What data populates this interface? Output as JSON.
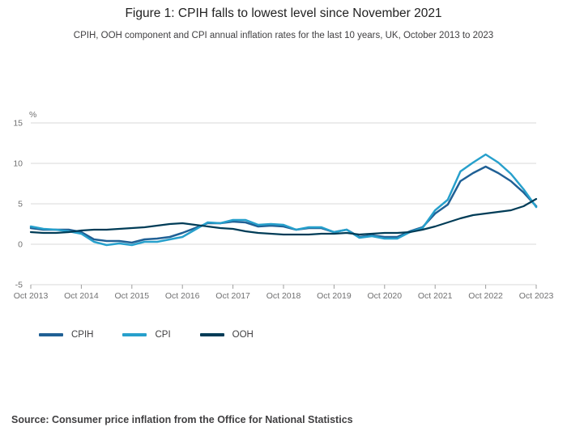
{
  "header": {
    "title": "Figure 1: CPIH falls to lowest level since November 2021",
    "subtitle": "CPIH, OOH component and CPI annual inflation rates for the last 10 years, UK, October 2013 to 2023"
  },
  "footer": {
    "source": "Source: Consumer price inflation from the Office for National Statistics"
  },
  "colors": {
    "gridline": "#d9d9d9",
    "tick": "#9d9d9d",
    "axis_text": "#707071",
    "title_text": "#222222",
    "subtitle_text": "#414042",
    "source_text": "#414042",
    "background": "#ffffff"
  },
  "chart_data": {
    "type": "line",
    "title": "Figure 1: CPIH falls to lowest level since November 2021",
    "subtitle": "CPIH, OOH component and CPI annual inflation rates for the last 10 years, UK, October 2013 to 2023",
    "ylabel": "%",
    "ylim": [
      -5,
      15
    ],
    "yticks": [
      15,
      10,
      5,
      0,
      -5
    ],
    "grid": true,
    "legend_position": "bottom-left",
    "xtick_labels": [
      "Oct 2013",
      "Oct 2014",
      "Oct 2015",
      "Oct 2016",
      "Oct 2017",
      "Oct 2018",
      "Oct 2019",
      "Oct 2020",
      "Oct 2021",
      "Oct 2022",
      "Oct 2023"
    ],
    "x_months": [
      0,
      3,
      6,
      9,
      12,
      15,
      18,
      21,
      24,
      27,
      30,
      33,
      36,
      39,
      42,
      45,
      48,
      51,
      54,
      57,
      60,
      63,
      66,
      69,
      72,
      75,
      78,
      81,
      84,
      87,
      90,
      93,
      96,
      99,
      102,
      105,
      108,
      111,
      114,
      117,
      120
    ],
    "series": [
      {
        "name": "CPIH",
        "color": "#206095",
        "width": 2.5,
        "values": [
          2.0,
          1.8,
          1.8,
          1.8,
          1.5,
          0.6,
          0.4,
          0.4,
          0.2,
          0.6,
          0.7,
          0.9,
          1.4,
          2.0,
          2.6,
          2.6,
          2.8,
          2.7,
          2.2,
          2.3,
          2.2,
          1.8,
          2.0,
          2.0,
          1.5,
          1.8,
          0.9,
          1.1,
          0.9,
          0.9,
          1.6,
          2.1,
          3.8,
          4.9,
          7.8,
          8.8,
          9.6,
          8.8,
          7.8,
          6.4,
          4.7
        ]
      },
      {
        "name": "CPI",
        "color": "#27a0cc",
        "width": 2.5,
        "values": [
          2.2,
          1.9,
          1.8,
          1.6,
          1.3,
          0.3,
          -0.1,
          0.1,
          -0.1,
          0.3,
          0.3,
          0.6,
          0.9,
          1.8,
          2.7,
          2.6,
          3.0,
          3.0,
          2.4,
          2.5,
          2.4,
          1.8,
          2.1,
          2.1,
          1.5,
          1.8,
          0.8,
          1.0,
          0.7,
          0.7,
          1.5,
          2.0,
          4.2,
          5.5,
          9.0,
          10.1,
          11.1,
          10.1,
          8.7,
          6.8,
          4.6
        ]
      },
      {
        "name": "OOH",
        "color": "#003c57",
        "width": 2.2,
        "values": [
          1.5,
          1.4,
          1.4,
          1.5,
          1.7,
          1.8,
          1.8,
          1.9,
          2.0,
          2.1,
          2.3,
          2.5,
          2.6,
          2.4,
          2.2,
          2.0,
          1.9,
          1.6,
          1.4,
          1.3,
          1.2,
          1.2,
          1.2,
          1.3,
          1.3,
          1.4,
          1.2,
          1.3,
          1.4,
          1.4,
          1.5,
          1.8,
          2.2,
          2.7,
          3.2,
          3.6,
          3.8,
          4.0,
          4.2,
          4.7,
          5.6
        ]
      }
    ]
  }
}
